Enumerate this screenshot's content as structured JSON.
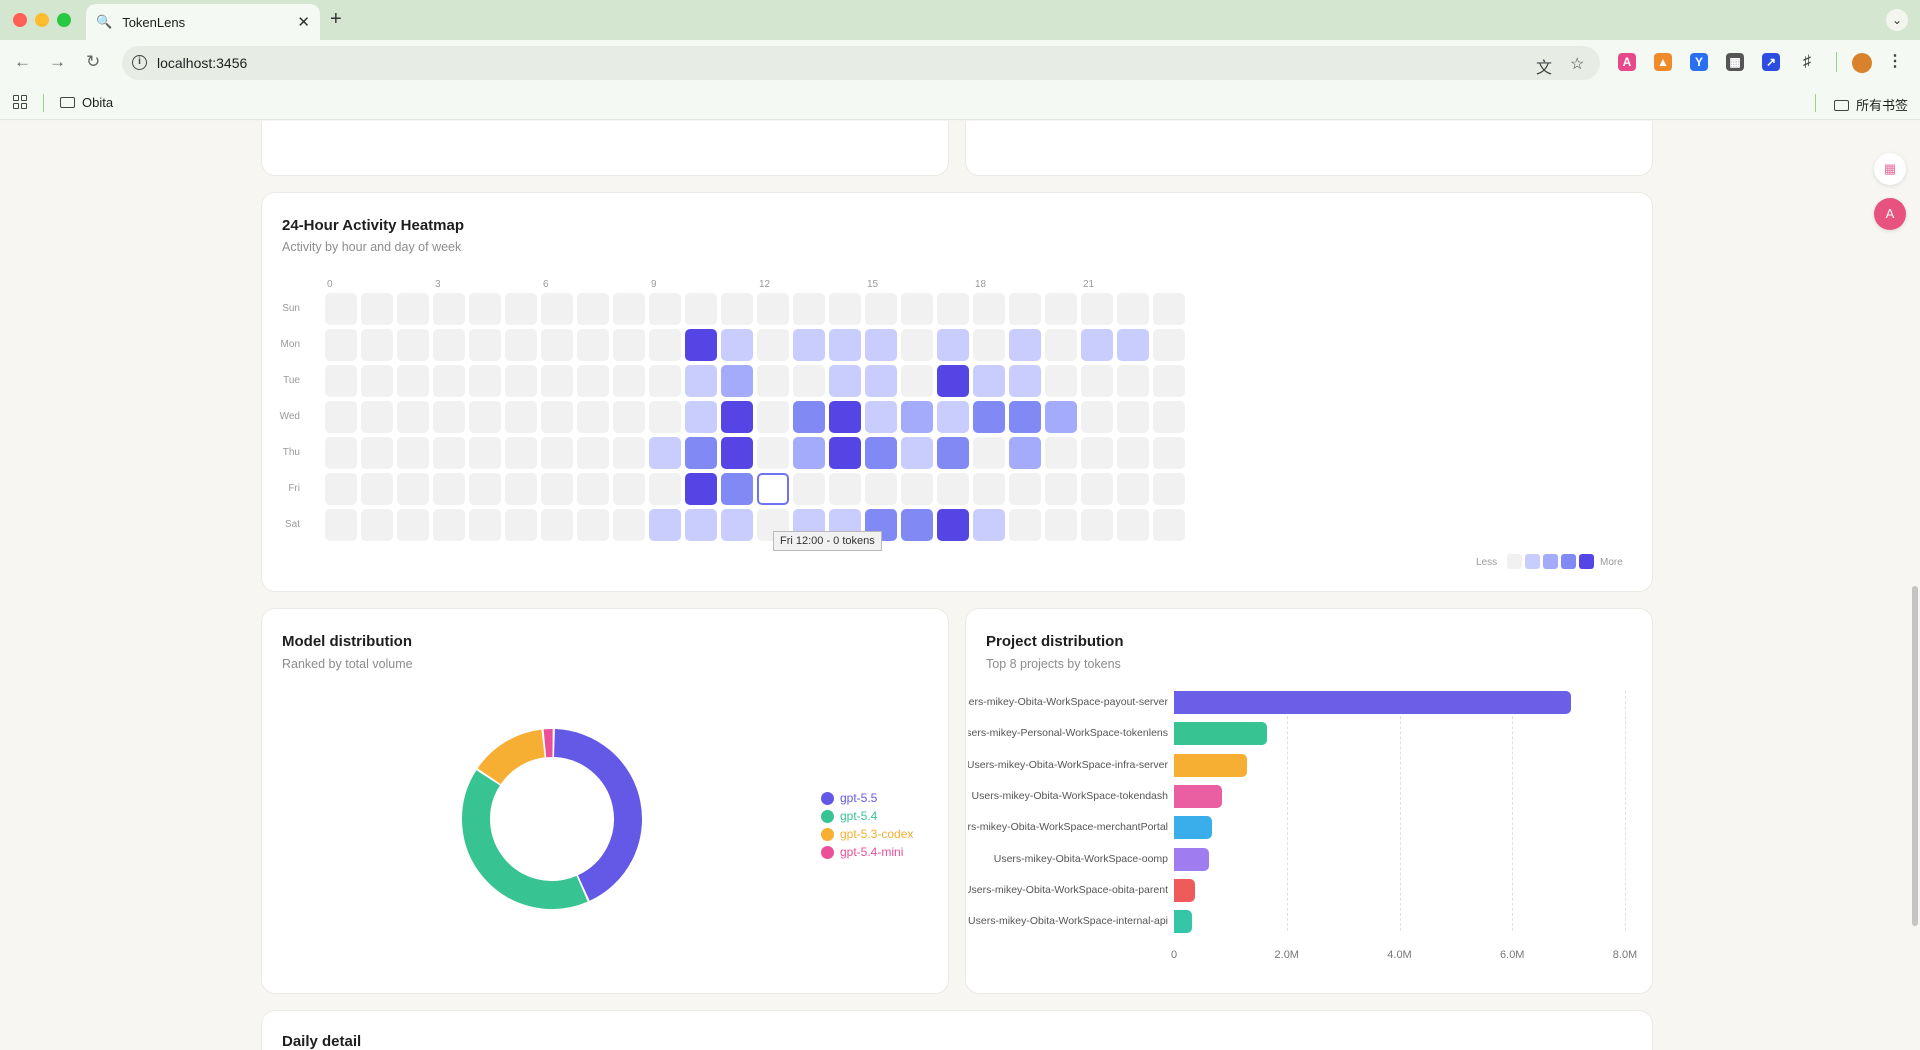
{
  "browser": {
    "tab_title": "TokenLens",
    "url": "localhost:3456",
    "bookmark_folder": "Obita",
    "all_bookmarks": "所有书签"
  },
  "heatmap": {
    "title": "24-Hour Activity Heatmap",
    "subtitle": "Activity by hour and day of week",
    "hour_labels": [
      {
        "hour": 0,
        "label": "0"
      },
      {
        "hour": 3,
        "label": "3"
      },
      {
        "hour": 6,
        "label": "6"
      },
      {
        "hour": 9,
        "label": "9"
      },
      {
        "hour": 12,
        "label": "12"
      },
      {
        "hour": 15,
        "label": "15"
      },
      {
        "hour": 18,
        "label": "18"
      },
      {
        "hour": 21,
        "label": "21"
      }
    ],
    "days": [
      "Sun",
      "Mon",
      "Tue",
      "Wed",
      "Thu",
      "Fri",
      "Sat"
    ],
    "levels": [
      [
        0,
        0,
        0,
        0,
        0,
        0,
        0,
        0,
        0,
        0,
        0,
        0,
        0,
        0,
        0,
        0,
        0,
        0,
        0,
        0,
        0,
        0,
        0,
        0
      ],
      [
        0,
        0,
        0,
        0,
        0,
        0,
        0,
        0,
        0,
        0,
        4,
        1,
        0,
        1,
        1,
        1,
        0,
        1,
        0,
        1,
        0,
        1,
        1,
        0
      ],
      [
        0,
        0,
        0,
        0,
        0,
        0,
        0,
        0,
        0,
        0,
        1,
        2,
        0,
        0,
        1,
        1,
        0,
        4,
        1,
        1,
        0,
        0,
        0,
        0
      ],
      [
        0,
        0,
        0,
        0,
        0,
        0,
        0,
        0,
        0,
        0,
        1,
        4,
        0,
        3,
        4,
        1,
        2,
        1,
        3,
        3,
        2,
        0,
        0,
        0
      ],
      [
        0,
        0,
        0,
        0,
        0,
        0,
        0,
        0,
        0,
        1,
        3,
        4,
        0,
        2,
        4,
        3,
        1,
        3,
        0,
        2,
        0,
        0,
        0,
        0
      ],
      [
        0,
        0,
        0,
        0,
        0,
        0,
        0,
        0,
        0,
        0,
        4,
        3,
        0,
        0,
        0,
        0,
        0,
        0,
        0,
        0,
        0,
        0,
        0,
        0
      ],
      [
        0,
        0,
        0,
        0,
        0,
        0,
        0,
        0,
        0,
        1,
        1,
        1,
        0,
        1,
        1,
        3,
        3,
        4,
        1,
        0,
        0,
        0,
        0,
        0
      ]
    ],
    "selected": {
      "day": "Fri",
      "hour": 12
    },
    "tooltip": "Fri 12:00 - 0 tokens",
    "legend_less": "Less",
    "legend_more": "More",
    "colors": [
      "#f1f1f1",
      "#c8cdfd",
      "#a4abfa",
      "#8189f4",
      "#5445e4"
    ]
  },
  "model_distribution": {
    "title": "Model distribution",
    "subtitle": "Ranked by total volume"
  },
  "project_distribution": {
    "title": "Project distribution",
    "subtitle": "Top 8 projects by tokens"
  },
  "daily_detail": {
    "title": "Daily detail"
  },
  "chart_data": [
    {
      "type": "pie",
      "title": "Model distribution",
      "labels": [
        "gpt-5.5",
        "gpt-5.4",
        "gpt-5.3-codex",
        "gpt-5.4-mini"
      ],
      "values": [
        43,
        41,
        14,
        2
      ],
      "colors": [
        "#6359e6",
        "#38c392",
        "#f6ae33",
        "#ea4f98"
      ],
      "legend": "right"
    },
    {
      "type": "bar",
      "orientation": "horizontal",
      "title": "Project distribution",
      "categories": [
        "Users-mikey-Obita-WorkSpace-payout-server",
        "Users-mikey-Personal-WorkSpace-tokenlens",
        "Users-mikey-Obita-WorkSpace-infra-server",
        "Users-mikey-Obita-WorkSpace-tokendash",
        "Users-mikey-Obita-WorkSpace-merchantPortal",
        "Users-mikey-Obita-WorkSpace-oomp",
        "Users-mikey-Obita-WorkSpace-obita-parent",
        "Users-mikey-Obita-WorkSpace-internal-api"
      ],
      "values": [
        7.05,
        1.65,
        1.3,
        0.85,
        0.68,
        0.62,
        0.38,
        0.32
      ],
      "unit": "M tokens",
      "xlim": [
        0,
        8
      ],
      "xticks": [
        "0",
        "2.0M",
        "4.0M",
        "6.0M",
        "8.0M"
      ],
      "colors": [
        "#6a5fe6",
        "#38c392",
        "#f6ae33",
        "#ea5fa1",
        "#3aaeea",
        "#9f7df0",
        "#ef5b5b",
        "#35c6a8"
      ]
    }
  ]
}
